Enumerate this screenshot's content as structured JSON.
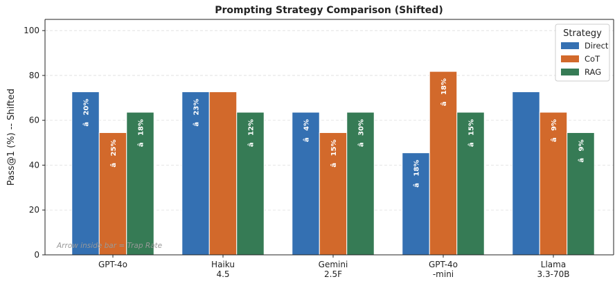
{
  "chart_data": {
    "type": "bar",
    "title": "Prompting Strategy Comparison (Shifted)",
    "ylabel": "Pass@1 (%) -- Shifted",
    "categories": [
      "GPT-4o",
      "Haiku\n4.5",
      "Gemini\n2.5F",
      "GPT-4o\n-mini",
      "Llama\n3.3-70B"
    ],
    "series": [
      {
        "name": "Direct",
        "color": "#3470b2",
        "values": [
          72.7,
          72.7,
          63.6,
          45.5,
          72.7
        ],
        "inner_labels": [
          "â 20%",
          "â 23%",
          "â 4%",
          "â 18%",
          null
        ]
      },
      {
        "name": "CoT",
        "color": "#d2692b",
        "values": [
          54.5,
          72.7,
          54.5,
          81.8,
          63.6
        ],
        "inner_labels": [
          "â 25%",
          null,
          "â 15%",
          "â 18%",
          "â 9%"
        ]
      },
      {
        "name": "RAG",
        "color": "#367b55",
        "values": [
          63.6,
          63.6,
          63.6,
          63.6,
          54.5
        ],
        "inner_labels": [
          "â 18%",
          "â 12%",
          "â 30%",
          "â 15%",
          "â 9%"
        ]
      }
    ],
    "ylim": [
      0,
      105
    ],
    "yticks": [
      0,
      20,
      40,
      60,
      80,
      100
    ],
    "grid": true,
    "legend_title": "Strategy",
    "legend_position": "upper right",
    "annotation": "Arrow inside bar = Trap Rate"
  }
}
